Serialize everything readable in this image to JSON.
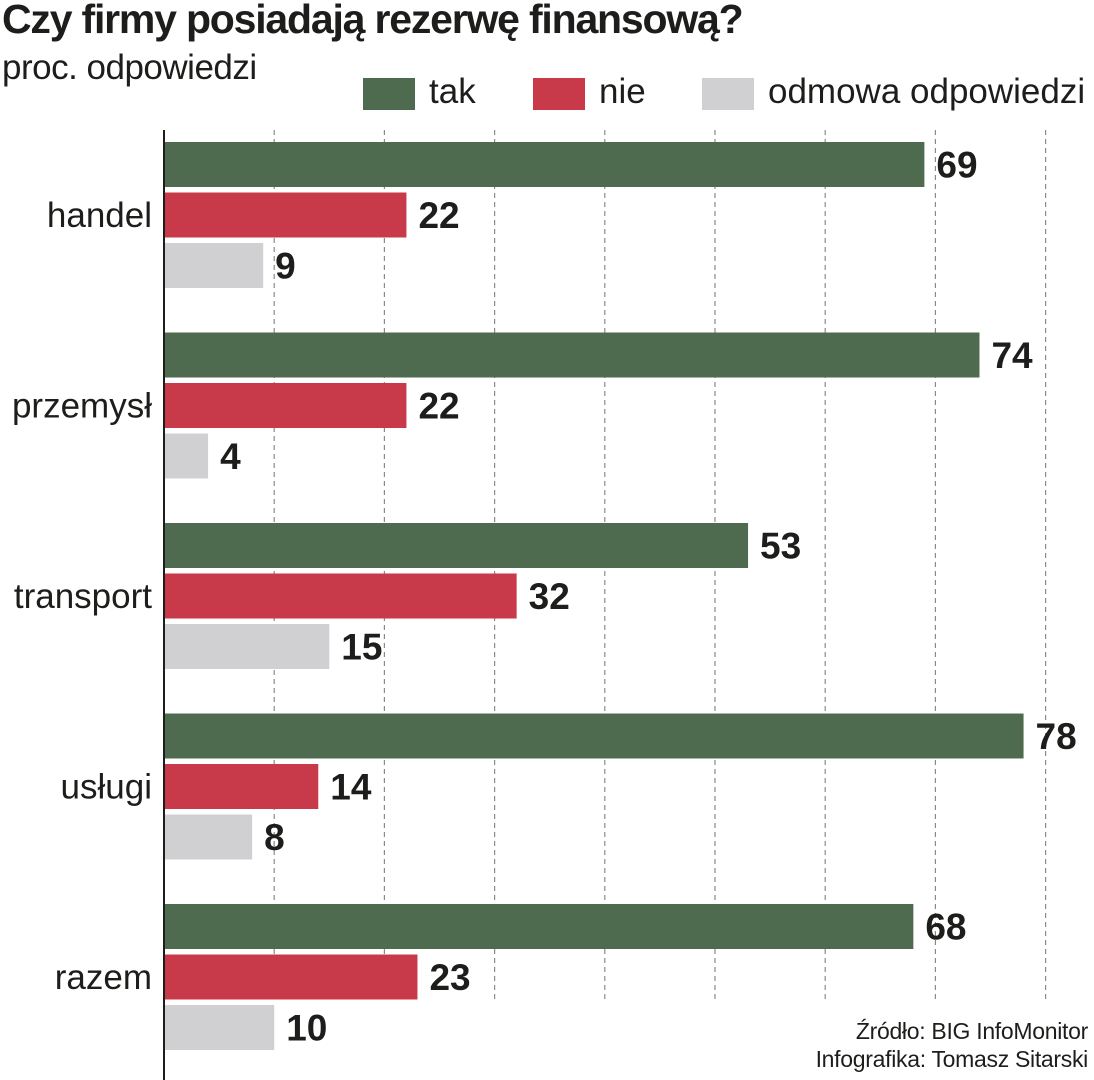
{
  "title": "Czy firmy posiadają rezerwę finansową?",
  "subtitle": "proc. odpowiedzi",
  "legend": [
    {
      "label": "tak",
      "color": "#4f6b4f"
    },
    {
      "label": "nie",
      "color": "#c8394a"
    },
    {
      "label": "odmowa odpowiedzi",
      "color": "#d0d0d2"
    }
  ],
  "footer": {
    "source": "Źródło: BIG InfoMonitor",
    "credit": "Infografika: Tomasz Sitarski"
  },
  "chart_data": {
    "type": "bar",
    "orientation": "horizontal",
    "title": "Czy firmy posiadają rezerwę finansową?",
    "subtitle": "proc. odpowiedzi",
    "categories": [
      "handel",
      "przemysł",
      "transport",
      "usługi",
      "razem"
    ],
    "series": [
      {
        "name": "tak",
        "color": "#4f6b4f",
        "values": [
          69,
          74,
          53,
          78,
          68
        ]
      },
      {
        "name": "nie",
        "color": "#c8394a",
        "values": [
          22,
          22,
          32,
          14,
          23
        ]
      },
      {
        "name": "odmowa odpowiedzi",
        "color": "#d0d0d2",
        "values": [
          9,
          4,
          15,
          8,
          10
        ]
      }
    ],
    "xlim": [
      0,
      80
    ],
    "grid": true,
    "legend_position": "top-right"
  }
}
